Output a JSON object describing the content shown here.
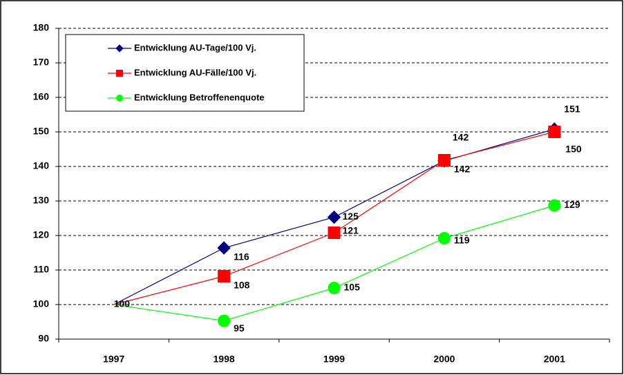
{
  "chart_data": {
    "type": "line",
    "categories": [
      "1997",
      "1998",
      "1999",
      "2000",
      "2001"
    ],
    "series": [
      {
        "name": "Entwicklung AU-Tage/100 Vj.",
        "color": "#000080",
        "marker": "diamond",
        "values": [
          100,
          116.4,
          125.3,
          141.6,
          150.8
        ],
        "value_labels": [
          null,
          "116",
          "125",
          "142",
          "151"
        ]
      },
      {
        "name": "Entwicklung AU-Fälle/100 Vj.",
        "color": "#ff0000",
        "marker": "square",
        "values": [
          100,
          108.2,
          120.8,
          141.8,
          150.0
        ],
        "value_labels": [
          null,
          "108",
          "121",
          "142",
          "150"
        ]
      },
      {
        "name": "Entwicklung Betroffenenquote",
        "color": "#00ff00",
        "marker": "circle",
        "values": [
          100,
          95.3,
          104.8,
          119.2,
          128.7
        ],
        "value_labels": [
          "100",
          "95",
          "105",
          "119",
          "129"
        ]
      }
    ],
    "ylim": [
      90,
      180
    ],
    "yticks": [
      90,
      100,
      110,
      120,
      130,
      140,
      150,
      160,
      170,
      180
    ],
    "grid": true,
    "legend": "top-left"
  }
}
